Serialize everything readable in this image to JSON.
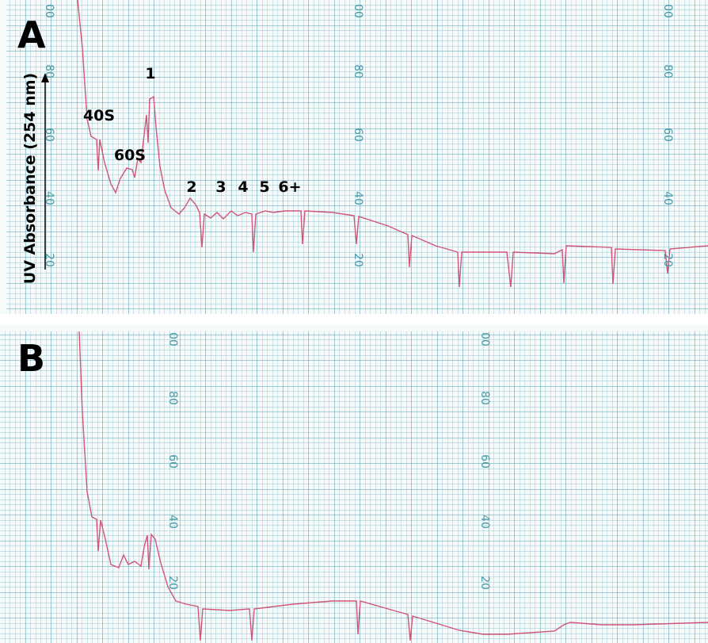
{
  "panels": [
    {
      "label": "A",
      "y_axis_label": "UV Absorbance (254 nm)",
      "peak_labels": [
        "40S",
        "60S",
        "1",
        "2",
        "3",
        "4",
        "5",
        "6+"
      ]
    },
    {
      "label": "B"
    }
  ],
  "paper_scale": [
    "00",
    "80",
    "60",
    "40",
    "20"
  ]
}
